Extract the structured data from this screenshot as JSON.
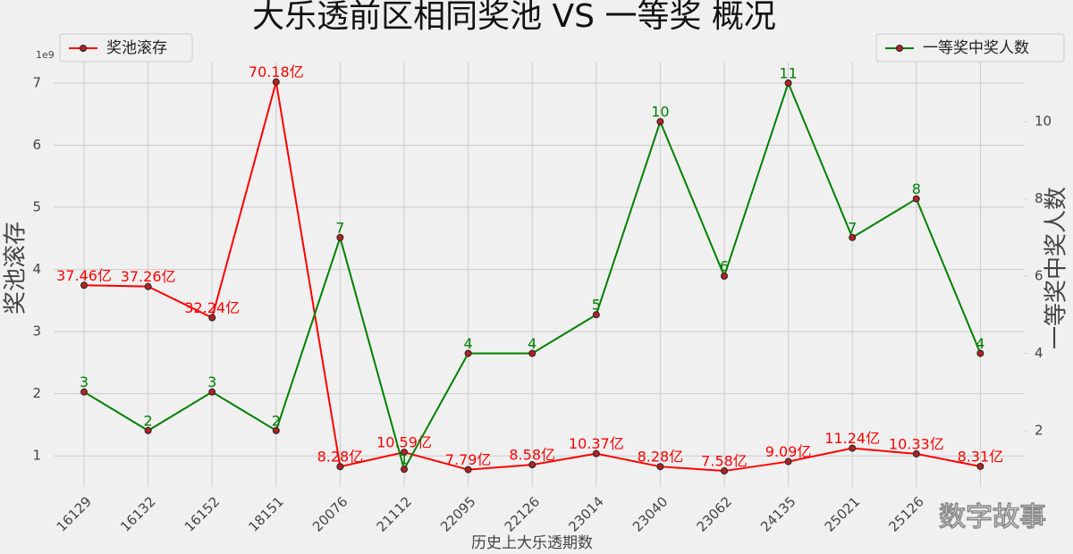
{
  "chart_data": {
    "type": "line",
    "title": "大乐透前区相同奖池 VS 一等奖 概况",
    "x_label": "历史上大乐透期数",
    "y_label": "奖池滚存",
    "y2_label": "一等奖中奖人数",
    "y_offset_label": "1e9",
    "categories": [
      "16129",
      "16132",
      "16152",
      "18151",
      "20076",
      "21112",
      "22095",
      "22126",
      "23014",
      "23040",
      "23062",
      "24135",
      "25021",
      "25126",
      null
    ],
    "series": [
      {
        "name": "奖池滚存",
        "color": "red",
        "legend": "upper left",
        "values": [
          3.746,
          3.726,
          3.224,
          7.018,
          0.828,
          1.059,
          0.779,
          0.858,
          1.037,
          0.828,
          0.758,
          0.909,
          1.124,
          1.033,
          0.831
        ],
        "value_labels": [
          "37.46亿",
          "37.26亿",
          "32.24亿",
          "70.18亿",
          "8.28亿",
          "10.59亿",
          "7.79亿",
          "8.58亿",
          "10.37亿",
          "8.28亿",
          "7.58亿",
          "9.09亿",
          "11.24亿",
          "10.33亿",
          "8.31亿"
        ]
      },
      {
        "name": "一等奖中奖人数",
        "color": "green",
        "axis": "y2",
        "legend": "upper right",
        "values": [
          3,
          2,
          3,
          2,
          7,
          1,
          4,
          4,
          5,
          10,
          6,
          11,
          7,
          8,
          4
        ]
      }
    ],
    "ylim": [
      0.5,
      7.33
    ],
    "yticks": [
      1,
      2,
      3,
      4,
      5,
      6,
      7
    ],
    "y2lim": [
      0.54,
      11.53
    ],
    "y2ticks": [
      2,
      4,
      6,
      8,
      10
    ],
    "grid": true,
    "watermark": "数字故事"
  }
}
